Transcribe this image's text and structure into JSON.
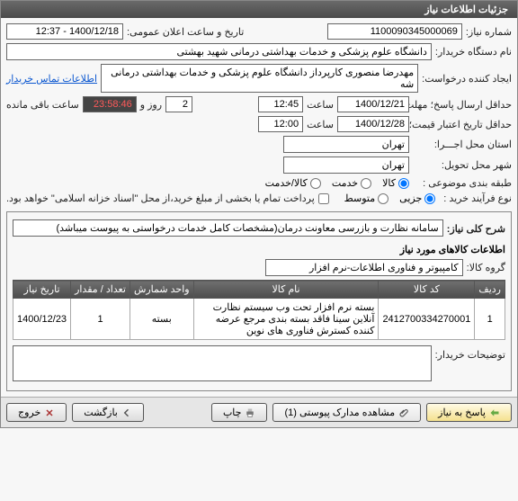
{
  "panel": {
    "title": "جزئیات اطلاعات نیاز"
  },
  "header": {
    "need_no_label": "شماره نیاز:",
    "need_no": "1100090345000069",
    "announce_label": "تاریخ و ساعت اعلان عمومی:",
    "announce_value": "1400/12/18 - 12:37",
    "buyer_label": "نام دستگاه خریدار:",
    "buyer_value": "دانشگاه علوم پزشکی و خدمات بهداشتی درمانی شهید بهشتی",
    "requester_label": "ایجاد کننده درخواست:",
    "requester_value": "مهدرضا منصوری کارپرداز دانشگاه علوم پزشکی و خدمات بهداشتی درمانی شه",
    "contact_link": "اطلاعات تماس خریدار",
    "deadline_label": "حداقل ارسال پاسخ؛ مهلت تا تاریخ:",
    "deadline_date": "1400/12/21",
    "time_label": "ساعت",
    "deadline_time": "12:45",
    "remaining_days": "2",
    "remaining_days_label": "روز و",
    "remaining_time": "23:58:46",
    "remaining_suffix": "ساعت باقی مانده",
    "validity_label": "حداقل تاریخ اعتبار قیمت؛ تا تاریخ:",
    "validity_date": "1400/12/28",
    "validity_time": "12:00",
    "exec_city_label": "استان محل اجـــرا:",
    "exec_city": "تهران",
    "delivery_city_label": "شهر محل تحویل:",
    "delivery_city": "تهران",
    "catalog_label": "طبقه بندی موضوعی :",
    "catalog_options": {
      "goods": "کالا",
      "service": "خدمت",
      "both": "کالا/خدمت"
    },
    "purchase_type_label": "نوع فرآیند خرید :",
    "purchase_options": {
      "partial": "جزیی",
      "medium": "متوسط"
    },
    "purchase_note": "پرداخت تمام یا بخشی از مبلغ خرید،از محل \"اسناد خزانه اسلامی\" خواهد بود.",
    "purchase_note_checked": false
  },
  "need": {
    "title_label": "شرح کلی نیاز:",
    "title_value": "سامانه نظارت و بازرسی معاونت درمان(مشخصات کامل خدمات درخواستی به پیوست میباشد)",
    "goods_heading": "اطلاعات کالاهای مورد نیاز",
    "group_label": "گروه کالا:",
    "group_value": "کامپیوتر و فناوری اطلاعات-نرم افزار"
  },
  "table": {
    "headers": [
      "ردیف",
      "کد کالا",
      "نام کالا",
      "واحد شمارش",
      "تعداد / مقدار",
      "تاریخ نیاز"
    ],
    "rows": [
      [
        "1",
        "2412700334270001",
        "بسته نرم افزار تحت وب سیستم نظارت آنلاین سینا فاقد بسته بندی مرجع عرضه کننده کسترش فناوری های نوین",
        "بسته",
        "1",
        "1400/12/23"
      ]
    ]
  },
  "buyer_notes": {
    "label": "توضیحات خریدار:",
    "value": ""
  },
  "footer": {
    "reply": "پاسخ به نیاز",
    "attachments": "مشاهده مدارک پیوستی (1)",
    "print": "چاپ",
    "back": "بازگشت",
    "exit": "خروج"
  },
  "colors": {
    "panel_header_bg": "#555",
    "border": "#888",
    "text": "#222",
    "countdown": "#d00000",
    "link": "#0b57d0"
  }
}
